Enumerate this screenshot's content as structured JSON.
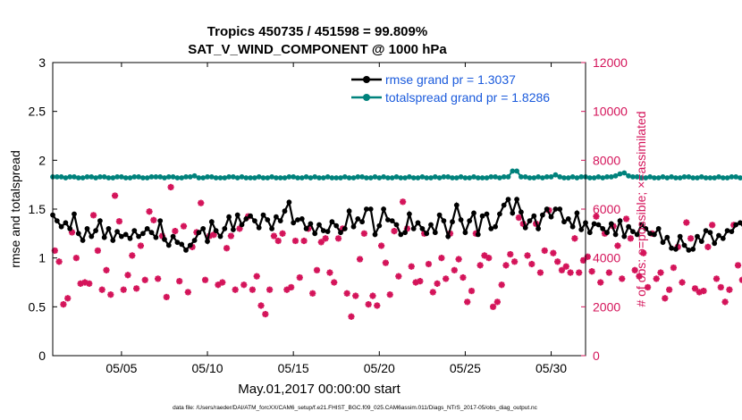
{
  "chart_data": {
    "type": "line",
    "title_line1": "Tropics 450735 / 451598 = 99.809%",
    "title_line2": "SAT_V_WIND_COMPONENT @ 1000 hPa",
    "xlabel": "May.01,2017 00:00:00 start",
    "ylabel_left": "rmse and totalspread",
    "ylabel_right": "# of obs: o=possible; ×=assimilated",
    "footnote": "data file: /Users/raeder/DAI/ATM_forcXX/CAM6_setup/f.e21.FHIST_BGC.f09_025.CAM6assim.011/Diags_NTrS_2017-05/obs_diag_output.nc",
    "xlim_days": [
      1,
      32
    ],
    "ylim_left": [
      0,
      3
    ],
    "ylim_right": [
      0,
      12000
    ],
    "x_ticks": [
      {
        "day": 5,
        "label": "05/05"
      },
      {
        "day": 10,
        "label": "05/10"
      },
      {
        "day": 15,
        "label": "05/15"
      },
      {
        "day": 20,
        "label": "05/20"
      },
      {
        "day": 25,
        "label": "05/25"
      },
      {
        "day": 30,
        "label": "05/30"
      }
    ],
    "y_ticks_left": [
      {
        "value": 0,
        "label": "0"
      },
      {
        "value": 0.5,
        "label": "0.5"
      },
      {
        "value": 1,
        "label": "1"
      },
      {
        "value": 1.5,
        "label": "1.5"
      },
      {
        "value": 2,
        "label": "2"
      },
      {
        "value": 2.5,
        "label": "2.5"
      },
      {
        "value": 3,
        "label": "3"
      }
    ],
    "y_ticks_right": [
      {
        "value": 0,
        "label": "0"
      },
      {
        "value": 2000,
        "label": "2000"
      },
      {
        "value": 4000,
        "label": "4000"
      },
      {
        "value": 6000,
        "label": "6000"
      },
      {
        "value": 8000,
        "label": "8000"
      },
      {
        "value": 10000,
        "label": "10000"
      },
      {
        "value": 12000,
        "label": "12000"
      }
    ],
    "x_start_day": 1,
    "x_step_days": 0.25,
    "series": [
      {
        "name": "rmse grand pr = 1.3037",
        "color": "#000000",
        "values": [
          1.44,
          1.38,
          1.32,
          1.36,
          1.3,
          1.45,
          1.25,
          1.18,
          1.3,
          1.22,
          1.28,
          1.38,
          1.21,
          1.3,
          1.18,
          1.27,
          1.22,
          1.24,
          1.2,
          1.28,
          1.22,
          1.25,
          1.3,
          1.26,
          1.21,
          1.38,
          1.19,
          1.13,
          1.22,
          1.16,
          1.14,
          1.08,
          1.13,
          1.18,
          1.26,
          1.3,
          1.17,
          1.37,
          1.28,
          1.22,
          1.3,
          1.42,
          1.29,
          1.44,
          1.34,
          1.4,
          1.43,
          1.38,
          1.31,
          1.44,
          1.39,
          1.3,
          1.42,
          1.38,
          1.48,
          1.57,
          1.36,
          1.39,
          1.4,
          1.3,
          1.35,
          1.25,
          1.34,
          1.28,
          1.27,
          1.37,
          1.33,
          1.26,
          1.3,
          1.48,
          1.32,
          1.4,
          1.37,
          1.5,
          1.5,
          1.24,
          1.33,
          1.5,
          1.39,
          1.38,
          1.34,
          1.24,
          1.26,
          1.45,
          1.3,
          1.36,
          1.3,
          1.25,
          1.34,
          1.26,
          1.44,
          1.38,
          1.22,
          1.37,
          1.54,
          1.39,
          1.26,
          1.38,
          1.46,
          1.24,
          1.43,
          1.45,
          1.3,
          1.32,
          1.45,
          1.54,
          1.6,
          1.46,
          1.6,
          1.47,
          1.31,
          1.38,
          1.43,
          1.3,
          1.44,
          1.5,
          1.42,
          1.5,
          1.5,
          1.37,
          1.4,
          1.32,
          1.46,
          1.29,
          1.36,
          1.26,
          1.35,
          1.34,
          1.3,
          1.26,
          1.35,
          1.24,
          1.38,
          1.22,
          1.32,
          1.27,
          1.24,
          1.34,
          1.3,
          1.25,
          1.24,
          1.3,
          1.16,
          1.21,
          1.1,
          1.09,
          1.22,
          1.13,
          1.08,
          1.09,
          1.22,
          1.17,
          1.28,
          1.26,
          1.15,
          1.23,
          1.2,
          1.28,
          1.27,
          1.34,
          1.36,
          1.3,
          1.23,
          1.3
        ]
      },
      {
        "name": "totalspread grand pr = 1.8286",
        "color": "#00827c",
        "values": [
          1.83,
          1.83,
          1.83,
          1.82,
          1.83,
          1.83,
          1.82,
          1.82,
          1.83,
          1.83,
          1.82,
          1.83,
          1.83,
          1.82,
          1.82,
          1.83,
          1.83,
          1.82,
          1.82,
          1.83,
          1.83,
          1.82,
          1.82,
          1.83,
          1.83,
          1.83,
          1.82,
          1.83,
          1.83,
          1.82,
          1.82,
          1.83,
          1.83,
          1.84,
          1.82,
          1.82,
          1.83,
          1.83,
          1.82,
          1.82,
          1.82,
          1.83,
          1.83,
          1.82,
          1.83,
          1.82,
          1.82,
          1.82,
          1.83,
          1.82,
          1.82,
          1.83,
          1.82,
          1.82,
          1.82,
          1.83,
          1.83,
          1.82,
          1.82,
          1.83,
          1.82,
          1.83,
          1.82,
          1.82,
          1.83,
          1.82,
          1.82,
          1.82,
          1.83,
          1.82,
          1.82,
          1.83,
          1.83,
          1.82,
          1.82,
          1.83,
          1.82,
          1.83,
          1.82,
          1.82,
          1.83,
          1.82,
          1.82,
          1.83,
          1.82,
          1.82,
          1.83,
          1.82,
          1.82,
          1.83,
          1.82,
          1.83,
          1.83,
          1.82,
          1.82,
          1.83,
          1.82,
          1.82,
          1.83,
          1.82,
          1.82,
          1.82,
          1.83,
          1.83,
          1.82,
          1.83,
          1.83,
          1.89,
          1.89,
          1.83,
          1.83,
          1.82,
          1.82,
          1.83,
          1.82,
          1.83,
          1.83,
          1.85,
          1.83,
          1.82,
          1.82,
          1.83,
          1.82,
          1.83,
          1.83,
          1.82,
          1.82,
          1.83,
          1.82,
          1.83,
          1.83,
          1.84,
          1.86,
          1.87,
          1.84,
          1.83,
          1.83,
          1.82,
          1.82,
          1.83,
          1.82,
          1.82,
          1.83,
          1.82,
          1.83,
          1.82,
          1.82,
          1.83,
          1.83,
          1.82,
          1.82,
          1.83,
          1.82,
          1.82,
          1.82,
          1.83,
          1.82,
          1.82,
          1.83,
          1.83,
          1.82,
          1.82,
          1.83,
          1.82,
          1.82,
          1.82,
          1.83,
          1.83,
          1.82
        ]
      }
    ],
    "obs_assimilated": {
      "name": "assimilated",
      "color": "#d4145a",
      "values": [
        4300,
        3850,
        2100,
        2350,
        5050,
        4000,
        2950,
        3000,
        2950,
        5750,
        4300,
        2700,
        3500,
        2500,
        6550,
        5500,
        2700,
        3300,
        4100,
        2750,
        4500,
        3100,
        5900,
        5550,
        3150,
        4900,
        2400,
        6900,
        5100,
        3050,
        5300,
        2600,
        4450,
        5050,
        6250,
        3100,
        4900,
        4950,
        2900,
        3000,
        4400,
        4900,
        2700,
        5200,
        2900,
        5700,
        2700,
        3250,
        2050,
        1700,
        2700,
        4900,
        4700,
        5000,
        2700,
        2800,
        4700,
        3200,
        4700,
        5200,
        2550,
        3500,
        4650,
        4800,
        3400,
        3000,
        4800,
        5200,
        2550,
        1600,
        2450,
        3950,
        5000,
        2100,
        2450,
        2050,
        4500,
        3800,
        2500,
        5100,
        3250,
        6300,
        5200,
        3650,
        3000,
        3050,
        5000,
        3750,
        2600,
        2950,
        4000,
        3150,
        5000,
        3500,
        3950,
        3200,
        2200,
        2650,
        5000,
        3700,
        4100,
        4000,
        2000,
        2200,
        2900,
        3700,
        4150,
        3850,
        5650,
        5400,
        4100,
        3750,
        5400,
        3400,
        4300,
        5950,
        4200,
        3850,
        3500,
        3650,
        3400,
        4800,
        3400,
        3900,
        4050,
        3450,
        5700,
        3000,
        5000,
        3400,
        5300,
        4500,
        3150,
        5600,
        4800,
        3500,
        3250,
        4200,
        2800,
        5000,
        3150,
        3400,
        2350,
        2700,
        3600,
        4450,
        3000,
        5450,
        4800,
        2750,
        2600,
        2650,
        4450,
        5350,
        3150,
        2800,
        2200,
        2700,
        5350,
        3700,
        3100,
        4700,
        2600,
        2900,
        2300,
        2200,
        1750,
        2500,
        2050,
        2450,
        2200
      ]
    }
  }
}
